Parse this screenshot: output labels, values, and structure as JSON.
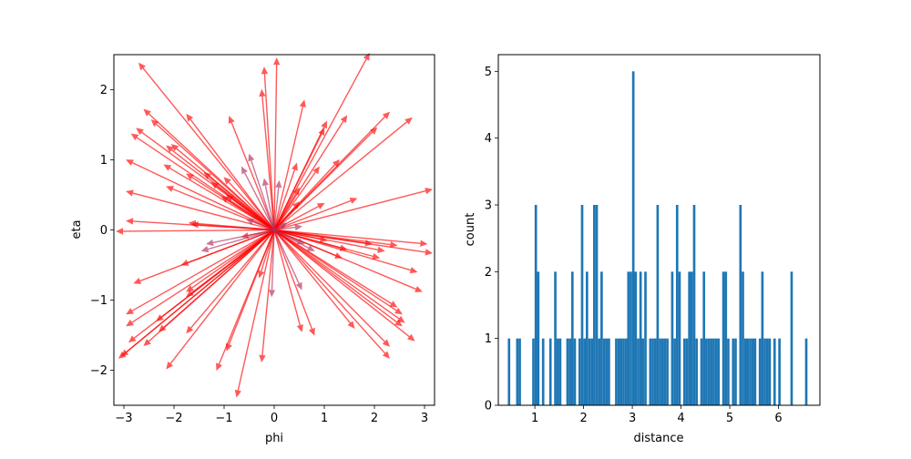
{
  "chart_data": [
    {
      "type": "quiver",
      "xlabel": "phi",
      "ylabel": "eta",
      "xlim": [
        -3.2,
        3.2
      ],
      "ylim": [
        -2.5,
        2.5
      ],
      "xticks": [
        -3,
        -2,
        -1,
        0,
        1,
        2,
        3
      ],
      "yticks": [
        -2,
        -1,
        0,
        1,
        2
      ],
      "origin": [
        0,
        0
      ],
      "colors": {
        "long": "#ff0000",
        "short": "#b03060"
      },
      "arrows": [
        [
          3.15,
          0.58
        ],
        [
          3.05,
          -0.2
        ],
        [
          3.15,
          -0.33
        ],
        [
          2.95,
          -0.88
        ],
        [
          2.85,
          -0.6
        ],
        [
          2.75,
          1.6
        ],
        [
          2.3,
          1.68
        ],
        [
          2.05,
          1.46
        ],
        [
          1.3,
          1.0
        ],
        [
          1.65,
          0.45
        ],
        [
          2.6,
          -1.32
        ],
        [
          2.55,
          -1.37
        ],
        [
          2.55,
          -1.2
        ],
        [
          2.45,
          -1.1
        ],
        [
          2.1,
          -0.4
        ],
        [
          2.2,
          -0.3
        ],
        [
          2.45,
          -0.22
        ],
        [
          1.95,
          -0.2
        ],
        [
          2.8,
          -1.58
        ],
        [
          2.3,
          -1.66
        ],
        [
          2.3,
          -1.83
        ],
        [
          1.6,
          -1.4
        ],
        [
          0.8,
          -1.5
        ],
        [
          1.45,
          1.63
        ],
        [
          1.0,
          1.45
        ],
        [
          1.05,
          1.55
        ],
        [
          0.6,
          1.85
        ],
        [
          0.45,
          0.95
        ],
        [
          0.9,
          0.9
        ],
        [
          1.0,
          0.38
        ],
        [
          1.9,
          2.52
        ],
        [
          0.05,
          2.45
        ],
        [
          -0.2,
          2.32
        ],
        [
          -0.25,
          2.0
        ],
        [
          -0.9,
          1.62
        ],
        [
          -1.75,
          1.65
        ],
        [
          -2.45,
          1.57
        ],
        [
          -2.6,
          1.72
        ],
        [
          -2.85,
          1.37
        ],
        [
          -2.75,
          1.45
        ],
        [
          -2.7,
          2.38
        ],
        [
          -2.05,
          1.22
        ],
        [
          -2.15,
          1.2
        ],
        [
          -2.2,
          0.93
        ],
        [
          -1.75,
          0.8
        ],
        [
          -1.4,
          0.82
        ],
        [
          -1.0,
          0.75
        ],
        [
          -2.95,
          1.0
        ],
        [
          -2.95,
          0.55
        ],
        [
          -2.15,
          0.62
        ],
        [
          -1.25,
          0.68
        ],
        [
          -0.95,
          0.5
        ],
        [
          -3.15,
          -0.02
        ],
        [
          -2.95,
          0.13
        ],
        [
          -1.65,
          0.08
        ],
        [
          -1.7,
          0.1
        ],
        [
          -2.8,
          -0.76
        ],
        [
          -1.85,
          -0.5
        ],
        [
          -2.95,
          -1.2
        ],
        [
          -2.95,
          -1.37
        ],
        [
          -3.1,
          -1.83
        ],
        [
          -3.05,
          -1.8
        ],
        [
          -2.9,
          -1.6
        ],
        [
          -2.6,
          -1.65
        ],
        [
          -2.35,
          -1.3
        ],
        [
          -2.3,
          -1.45
        ],
        [
          -1.75,
          -1.47
        ],
        [
          -1.75,
          -0.95
        ],
        [
          -1.75,
          -0.88
        ],
        [
          -2.15,
          -1.98
        ],
        [
          -1.15,
          -2.0
        ],
        [
          -0.95,
          -1.72
        ],
        [
          -0.75,
          -2.38
        ],
        [
          -0.25,
          -1.88
        ],
        [
          -0.3,
          -0.68
        ],
        [
          -0.65,
          -0.1
        ],
        [
          -1.05,
          0.48
        ],
        [
          0.5,
          0.6
        ],
        [
          0.5,
          0.4
        ],
        [
          1.05,
          -0.15
        ],
        [
          1.45,
          -0.28
        ],
        [
          1.35,
          -0.4
        ],
        [
          0.55,
          -1.45
        ]
      ],
      "short_arrows": [
        [
          -0.5,
          1.08
        ],
        [
          -0.65,
          0.9
        ],
        [
          -0.2,
          0.73
        ],
        [
          -0.55,
          0.15
        ],
        [
          -1.45,
          -0.3
        ],
        [
          -1.35,
          -0.2
        ],
        [
          0.55,
          0.05
        ],
        [
          0.25,
          0.1
        ],
        [
          -0.05,
          -0.95
        ],
        [
          0.55,
          -0.85
        ],
        [
          0.6,
          -0.2
        ],
        [
          0.8,
          -0.3
        ],
        [
          0.1,
          0.7
        ]
      ]
    },
    {
      "type": "bar",
      "xlabel": "distance",
      "ylabel": "count",
      "xlim": [
        0.25,
        6.85
      ],
      "ylim": [
        0,
        5.25
      ],
      "xticks": [
        1,
        2,
        3,
        4,
        5,
        6
      ],
      "yticks": [
        0,
        1,
        2,
        3,
        4,
        5
      ],
      "bin_width": 0.05,
      "color": "#1f77b4",
      "bars": [
        [
          0.47,
          1
        ],
        [
          0.64,
          1
        ],
        [
          0.69,
          1
        ],
        [
          0.97,
          1
        ],
        [
          1.02,
          3
        ],
        [
          1.07,
          2
        ],
        [
          1.17,
          1
        ],
        [
          1.32,
          1
        ],
        [
          1.42,
          2
        ],
        [
          1.47,
          1
        ],
        [
          1.52,
          1
        ],
        [
          1.67,
          1
        ],
        [
          1.72,
          1
        ],
        [
          1.77,
          2
        ],
        [
          1.82,
          1
        ],
        [
          1.92,
          1
        ],
        [
          1.97,
          3
        ],
        [
          2.02,
          1
        ],
        [
          2.07,
          2
        ],
        [
          2.12,
          1
        ],
        [
          2.17,
          1
        ],
        [
          2.22,
          3
        ],
        [
          2.27,
          3
        ],
        [
          2.32,
          1
        ],
        [
          2.37,
          2
        ],
        [
          2.42,
          1
        ],
        [
          2.47,
          1
        ],
        [
          2.52,
          1
        ],
        [
          2.67,
          1
        ],
        [
          2.72,
          1
        ],
        [
          2.77,
          1
        ],
        [
          2.82,
          1
        ],
        [
          2.87,
          1
        ],
        [
          2.92,
          2
        ],
        [
          2.97,
          2
        ],
        [
          3.02,
          5
        ],
        [
          3.07,
          2
        ],
        [
          3.12,
          1
        ],
        [
          3.17,
          2
        ],
        [
          3.22,
          1
        ],
        [
          3.27,
          2
        ],
        [
          3.37,
          1
        ],
        [
          3.42,
          1
        ],
        [
          3.47,
          1
        ],
        [
          3.52,
          3
        ],
        [
          3.57,
          1
        ],
        [
          3.62,
          1
        ],
        [
          3.67,
          1
        ],
        [
          3.72,
          1
        ],
        [
          3.82,
          2
        ],
        [
          3.87,
          1
        ],
        [
          3.92,
          3
        ],
        [
          3.97,
          2
        ],
        [
          4.07,
          1
        ],
        [
          4.12,
          1
        ],
        [
          4.17,
          2
        ],
        [
          4.22,
          2
        ],
        [
          4.27,
          3
        ],
        [
          4.32,
          1
        ],
        [
          4.42,
          1
        ],
        [
          4.47,
          2
        ],
        [
          4.52,
          1
        ],
        [
          4.57,
          1
        ],
        [
          4.62,
          1
        ],
        [
          4.67,
          1
        ],
        [
          4.72,
          1
        ],
        [
          4.77,
          1
        ],
        [
          4.87,
          2
        ],
        [
          4.92,
          2
        ],
        [
          4.97,
          1
        ],
        [
          5.07,
          1
        ],
        [
          5.12,
          1
        ],
        [
          5.22,
          3
        ],
        [
          5.27,
          2
        ],
        [
          5.32,
          1
        ],
        [
          5.37,
          1
        ],
        [
          5.42,
          1
        ],
        [
          5.47,
          1
        ],
        [
          5.52,
          1
        ],
        [
          5.62,
          1
        ],
        [
          5.67,
          2
        ],
        [
          5.72,
          1
        ],
        [
          5.77,
          1
        ],
        [
          5.82,
          1
        ],
        [
          5.92,
          1
        ],
        [
          6.02,
          1
        ],
        [
          6.27,
          2
        ],
        [
          6.57,
          1
        ]
      ]
    }
  ]
}
